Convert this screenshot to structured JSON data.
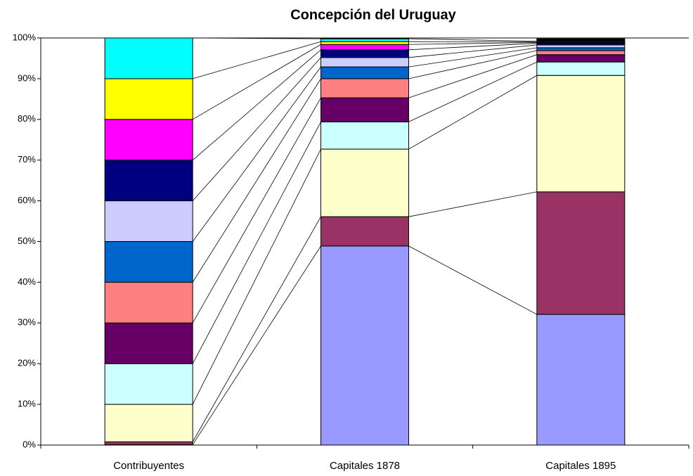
{
  "chart_data": {
    "type": "stacked_bar_100",
    "title": "Concepción del Uruguay",
    "categories": [
      "Contribuyentes",
      "Capitales 1878",
      "Capitales 1895"
    ],
    "series": [
      {
        "color": "#9999FF",
        "values": [
          0.1,
          48.9,
          32.1
        ]
      },
      {
        "color": "#993366",
        "values": [
          0.7,
          7.2,
          30.1
        ]
      },
      {
        "color": "#FFFFCC",
        "values": [
          9.2,
          16.6,
          28.6
        ]
      },
      {
        "color": "#CCFFFF",
        "values": [
          10,
          6.7,
          3.3
        ]
      },
      {
        "color": "#660066",
        "values": [
          10,
          5.9,
          1.8
        ]
      },
      {
        "color": "#FF8080",
        "values": [
          10,
          4.7,
          1.0
        ]
      },
      {
        "color": "#0066CC",
        "values": [
          10,
          2.9,
          0.7
        ]
      },
      {
        "color": "#CCCCFF",
        "values": [
          10,
          2.3,
          0.7
        ]
      },
      {
        "color": "#000080",
        "values": [
          10,
          1.9,
          0.4
        ]
      },
      {
        "color": "#FF00FF",
        "values": [
          10,
          1.3,
          0.2
        ]
      },
      {
        "color": "#FFFF00",
        "values": [
          10,
          0.7,
          0.1
        ]
      },
      {
        "color": "#00FFFF",
        "values": [
          10,
          0.7,
          0.2
        ]
      },
      {
        "color": "#000000",
        "values": [
          0,
          0.2,
          0.6
        ]
      }
    ],
    "ylim": [
      0,
      100
    ],
    "yticks": [
      {
        "value": 0,
        "label": "0%"
      },
      {
        "value": 10,
        "label": "10%"
      },
      {
        "value": 20,
        "label": "20%"
      },
      {
        "value": 30,
        "label": "30%"
      },
      {
        "value": 40,
        "label": "40%"
      },
      {
        "value": 50,
        "label": "50%"
      },
      {
        "value": 60,
        "label": "60%"
      },
      {
        "value": 70,
        "label": "70%"
      },
      {
        "value": 80,
        "label": "80%"
      },
      {
        "value": 90,
        "label": "90%"
      },
      {
        "value": 100,
        "label": "100%"
      }
    ],
    "series_lines": true
  }
}
